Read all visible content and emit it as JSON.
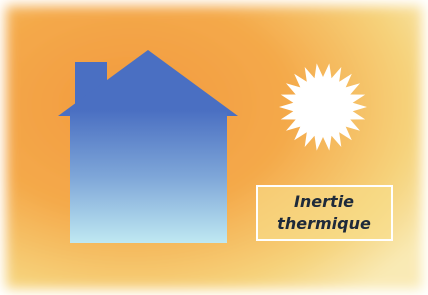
{
  "label": {
    "lines": [
      "Inertie",
      "thermique"
    ]
  }
}
